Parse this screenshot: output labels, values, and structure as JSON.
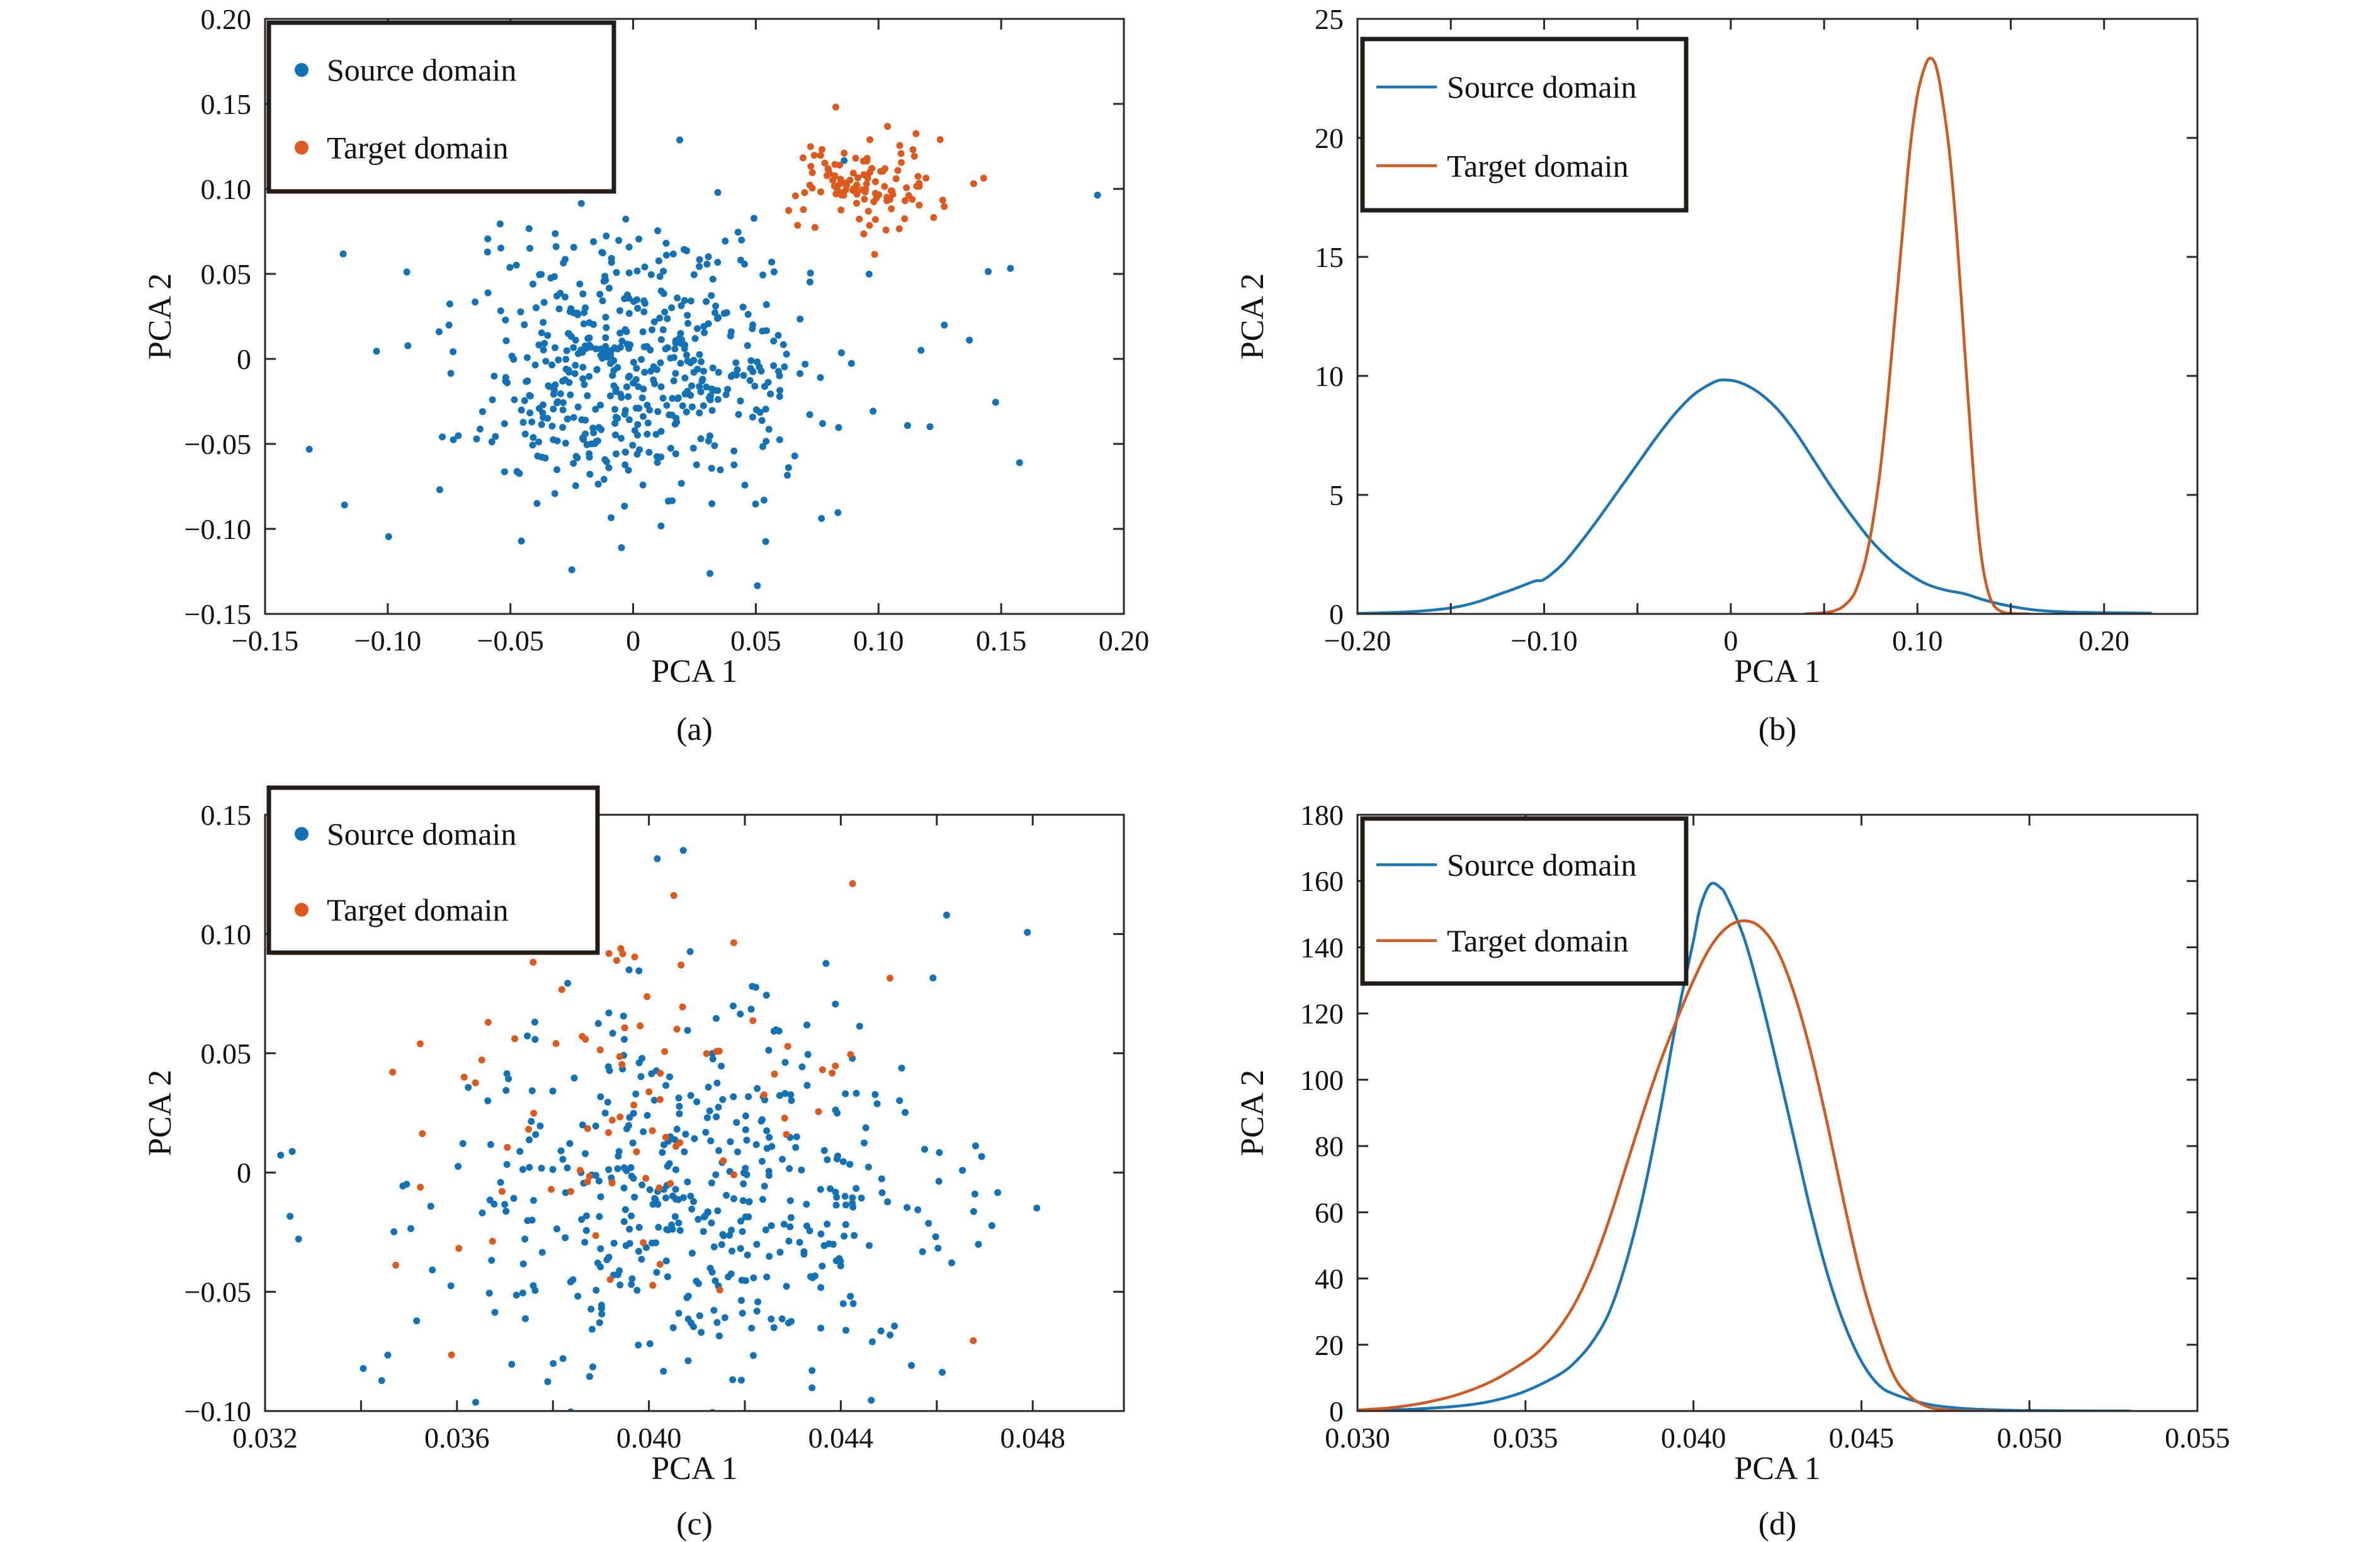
{
  "figure": {
    "colors": {
      "source_marker": "#1272b5",
      "target_marker": "#dc5a1e",
      "source_line": "#1d76b4",
      "target_line": "#cd5b22",
      "axis": "#2b2724",
      "legend_border": "#231d19",
      "text": "#111111",
      "background": "#ffffff"
    }
  },
  "chart_data": [
    {
      "id": "a",
      "type": "scatter",
      "caption": "(a)",
      "xlabel": "PCA 1",
      "ylabel": "PCA 2",
      "xlim": [
        -0.15,
        0.2
      ],
      "ylim": [
        -0.15,
        0.2
      ],
      "grid": false,
      "legend_position": "top-left",
      "xticks": [
        {
          "v": -0.15,
          "t": "−0.15"
        },
        {
          "v": -0.1,
          "t": "−0.10"
        },
        {
          "v": -0.05,
          "t": "−0.05"
        },
        {
          "v": 0,
          "t": "0"
        },
        {
          "v": 0.05,
          "t": "0.05"
        },
        {
          "v": 0.1,
          "t": "0.10"
        },
        {
          "v": 0.15,
          "t": "0.15"
        },
        {
          "v": 0.2,
          "t": "0.20"
        }
      ],
      "yticks": [
        {
          "v": -0.15,
          "t": "−0.15"
        },
        {
          "v": -0.1,
          "t": "−0.10"
        },
        {
          "v": -0.05,
          "t": "−0.05"
        },
        {
          "v": 0,
          "t": "0"
        },
        {
          "v": 0.05,
          "t": "0.05"
        },
        {
          "v": 0.1,
          "t": "0.10"
        },
        {
          "v": 0.15,
          "t": "0.15"
        },
        {
          "v": 0.2,
          "t": "0.20"
        }
      ],
      "series": [
        {
          "name": "Source domain",
          "marker": "dot",
          "color_key": "source_marker",
          "seed": 42,
          "clusters": [
            {
              "center": [
                -0.003,
                -0.006
              ],
              "std": [
                0.033,
                0.036
              ],
              "n": 430
            },
            {
              "center": [
                0.005,
                0.0
              ],
              "std": [
                0.068,
                0.058
              ],
              "n": 120
            }
          ]
        },
        {
          "name": "Target domain",
          "marker": "dot",
          "color_key": "target_marker",
          "seed": 7,
          "clusters": [
            {
              "center": [
                0.096,
                0.104
              ],
              "std": [
                0.0155,
                0.0135
              ],
              "n": 115
            }
          ]
        }
      ]
    },
    {
      "id": "b",
      "type": "line",
      "caption": "(b)",
      "xlabel": "PCA 1",
      "ylabel": "PCA 2",
      "xlim": [
        -0.2,
        0.25
      ],
      "ylim": [
        0,
        25
      ],
      "grid": false,
      "legend_position": "top-left",
      "xticks": [
        {
          "v": -0.2,
          "t": "−0.20"
        },
        {
          "v": -0.15,
          "t": ""
        },
        {
          "v": -0.1,
          "t": "−0.10"
        },
        {
          "v": -0.05,
          "t": ""
        },
        {
          "v": 0,
          "t": "0"
        },
        {
          "v": 0.05,
          "t": ""
        },
        {
          "v": 0.1,
          "t": "0.10"
        },
        {
          "v": 0.15,
          "t": ""
        },
        {
          "v": 0.2,
          "t": "0.20"
        },
        {
          "v": 0.25,
          "t": ""
        }
      ],
      "yticks": [
        {
          "v": 0,
          "t": "0"
        },
        {
          "v": 5,
          "t": "5"
        },
        {
          "v": 10,
          "t": "10"
        },
        {
          "v": 15,
          "t": "15"
        },
        {
          "v": 20,
          "t": "20"
        },
        {
          "v": 25,
          "t": "25"
        }
      ],
      "series": [
        {
          "name": "Source domain",
          "marker": "line",
          "color_key": "source_line",
          "points": [
            [
              -0.2,
              0.02
            ],
            [
              -0.185,
              0.05
            ],
            [
              -0.17,
              0.1
            ],
            [
              -0.155,
              0.2
            ],
            [
              -0.145,
              0.32
            ],
            [
              -0.135,
              0.52
            ],
            [
              -0.125,
              0.8
            ],
            [
              -0.115,
              1.08
            ],
            [
              -0.105,
              1.38
            ],
            [
              -0.1,
              1.45
            ],
            [
              -0.09,
              2.1
            ],
            [
              -0.08,
              3.05
            ],
            [
              -0.07,
              4.1
            ],
            [
              -0.06,
              5.2
            ],
            [
              -0.05,
              6.3
            ],
            [
              -0.04,
              7.4
            ],
            [
              -0.03,
              8.4
            ],
            [
              -0.02,
              9.2
            ],
            [
              -0.01,
              9.7
            ],
            [
              -0.004,
              9.83
            ],
            [
              0.005,
              9.72
            ],
            [
              0.015,
              9.3
            ],
            [
              0.025,
              8.6
            ],
            [
              0.035,
              7.6
            ],
            [
              0.045,
              6.4
            ],
            [
              0.055,
              5.2
            ],
            [
              0.065,
              4.1
            ],
            [
              0.075,
              3.1
            ],
            [
              0.085,
              2.3
            ],
            [
              0.095,
              1.7
            ],
            [
              0.105,
              1.25
            ],
            [
              0.115,
              1.0
            ],
            [
              0.125,
              0.85
            ],
            [
              0.135,
              0.6
            ],
            [
              0.145,
              0.4
            ],
            [
              0.155,
              0.25
            ],
            [
              0.165,
              0.15
            ],
            [
              0.18,
              0.08
            ],
            [
              0.2,
              0.05
            ],
            [
              0.215,
              0.04
            ],
            [
              0.225,
              0.03
            ]
          ]
        },
        {
          "name": "Target domain",
          "marker": "line",
          "color_key": "target_line",
          "points": [
            [
              0.04,
              0.0
            ],
            [
              0.05,
              0.05
            ],
            [
              0.055,
              0.12
            ],
            [
              0.06,
              0.3
            ],
            [
              0.065,
              0.7
            ],
            [
              0.068,
              1.2
            ],
            [
              0.072,
              2.2
            ],
            [
              0.076,
              3.8
            ],
            [
              0.08,
              6.0
            ],
            [
              0.084,
              9.0
            ],
            [
              0.088,
              12.5
            ],
            [
              0.092,
              16.0
            ],
            [
              0.096,
              19.5
            ],
            [
              0.1,
              21.8
            ],
            [
              0.104,
              23.0
            ],
            [
              0.107,
              23.35
            ],
            [
              0.11,
              23.0
            ],
            [
              0.113,
              21.8
            ],
            [
              0.117,
              19.5
            ],
            [
              0.121,
              16.0
            ],
            [
              0.125,
              11.5
            ],
            [
              0.129,
              7.0
            ],
            [
              0.132,
              4.0
            ],
            [
              0.135,
              2.0
            ],
            [
              0.138,
              0.9
            ],
            [
              0.141,
              0.35
            ],
            [
              0.145,
              0.1
            ],
            [
              0.15,
              0.02
            ],
            [
              0.16,
              0.0
            ]
          ]
        }
      ]
    },
    {
      "id": "c",
      "type": "scatter",
      "caption": "(c)",
      "xlabel": "PCA 1",
      "ylabel": "PCA 2",
      "xlim": [
        0.032,
        0.0499
      ],
      "ylim": [
        -0.1,
        0.15
      ],
      "grid": false,
      "legend_position": "top-left",
      "xticks": [
        {
          "v": 0.032,
          "t": "0.032"
        },
        {
          "v": 0.034,
          "t": ""
        },
        {
          "v": 0.036,
          "t": "0.036"
        },
        {
          "v": 0.038,
          "t": ""
        },
        {
          "v": 0.04,
          "t": "0.040"
        },
        {
          "v": 0.042,
          "t": ""
        },
        {
          "v": 0.044,
          "t": "0.044"
        },
        {
          "v": 0.046,
          "t": ""
        },
        {
          "v": 0.048,
          "t": "0.048"
        }
      ],
      "yticks": [
        {
          "v": -0.1,
          "t": "−0.10"
        },
        {
          "v": -0.05,
          "t": "−0.05"
        },
        {
          "v": 0,
          "t": "0"
        },
        {
          "v": 0.05,
          "t": "0.05"
        },
        {
          "v": 0.1,
          "t": "0.10"
        },
        {
          "v": 0.15,
          "t": "0.15"
        }
      ],
      "series": [
        {
          "name": "Source domain",
          "marker": "dot",
          "color_key": "source_marker",
          "seed": 1234,
          "clusters": [
            {
              "center": [
                0.0412,
                -0.014
              ],
              "std": [
                0.0026,
                0.036
              ],
              "n": 400
            },
            {
              "center": [
                0.0406,
                0.012
              ],
              "std": [
                0.0037,
                0.055
              ],
              "n": 80
            }
          ]
        },
        {
          "name": "Target domain",
          "marker": "dot",
          "color_key": "target_marker",
          "seed": 99,
          "clusters": [
            {
              "center": [
                0.04,
                0.022
              ],
              "std": [
                0.0028,
                0.042
              ],
              "n": 88
            }
          ]
        }
      ]
    },
    {
      "id": "d",
      "type": "line",
      "caption": "(d)",
      "xlabel": "PCA 1",
      "ylabel": "PCA 2",
      "xlim": [
        0.03,
        0.055
      ],
      "ylim": [
        0,
        180
      ],
      "grid": false,
      "legend_position": "top-left",
      "xticks": [
        {
          "v": 0.03,
          "t": "0.030"
        },
        {
          "v": 0.035,
          "t": "0.035"
        },
        {
          "v": 0.04,
          "t": "0.040"
        },
        {
          "v": 0.045,
          "t": "0.045"
        },
        {
          "v": 0.05,
          "t": "0.050"
        },
        {
          "v": 0.055,
          "t": "0.055"
        }
      ],
      "yticks": [
        {
          "v": 0,
          "t": "0"
        },
        {
          "v": 20,
          "t": "20"
        },
        {
          "v": 40,
          "t": "40"
        },
        {
          "v": 60,
          "t": "60"
        },
        {
          "v": 80,
          "t": "80"
        },
        {
          "v": 100,
          "t": "100"
        },
        {
          "v": 120,
          "t": "120"
        },
        {
          "v": 140,
          "t": "140"
        },
        {
          "v": 160,
          "t": "160"
        },
        {
          "v": 180,
          "t": "180"
        }
      ],
      "series": [
        {
          "name": "Source domain",
          "marker": "line",
          "color_key": "source_line",
          "points": [
            [
              0.03,
              0.2
            ],
            [
              0.0315,
              0.5
            ],
            [
              0.033,
              1.5
            ],
            [
              0.034,
              3
            ],
            [
              0.035,
              6
            ],
            [
              0.036,
              11
            ],
            [
              0.0365,
              15
            ],
            [
              0.037,
              21
            ],
            [
              0.0375,
              30
            ],
            [
              0.038,
              45
            ],
            [
              0.0385,
              65
            ],
            [
              0.039,
              90
            ],
            [
              0.0395,
              118
            ],
            [
              0.04,
              142
            ],
            [
              0.0402,
              152
            ],
            [
              0.0405,
              159
            ],
            [
              0.0408,
              158
            ],
            [
              0.041,
              155
            ],
            [
              0.0415,
              143
            ],
            [
              0.042,
              125
            ],
            [
              0.0425,
              104
            ],
            [
              0.043,
              82
            ],
            [
              0.0435,
              60
            ],
            [
              0.044,
              41
            ],
            [
              0.0445,
              26
            ],
            [
              0.045,
              15
            ],
            [
              0.0455,
              8
            ],
            [
              0.046,
              5
            ],
            [
              0.047,
              2
            ],
            [
              0.048,
              0.8
            ],
            [
              0.049,
              0.35
            ],
            [
              0.05,
              0.15
            ],
            [
              0.0515,
              0.05
            ],
            [
              0.053,
              0
            ]
          ]
        },
        {
          "name": "Target domain",
          "marker": "line",
          "color_key": "target_line",
          "points": [
            [
              0.03,
              0.3
            ],
            [
              0.031,
              1
            ],
            [
              0.032,
              2.5
            ],
            [
              0.033,
              5
            ],
            [
              0.034,
              9
            ],
            [
              0.035,
              15
            ],
            [
              0.0355,
              19
            ],
            [
              0.036,
              25
            ],
            [
              0.0365,
              33
            ],
            [
              0.037,
              44
            ],
            [
              0.0375,
              58
            ],
            [
              0.038,
              74
            ],
            [
              0.0385,
              90
            ],
            [
              0.039,
              105
            ],
            [
              0.0395,
              118
            ],
            [
              0.04,
              130
            ],
            [
              0.0405,
              140
            ],
            [
              0.041,
              146
            ],
            [
              0.0415,
              148
            ],
            [
              0.042,
              146
            ],
            [
              0.0425,
              139
            ],
            [
              0.043,
              126
            ],
            [
              0.0435,
              108
            ],
            [
              0.044,
              86
            ],
            [
              0.0445,
              62
            ],
            [
              0.045,
              40
            ],
            [
              0.0455,
              23
            ],
            [
              0.046,
              10
            ],
            [
              0.0465,
              4
            ],
            [
              0.047,
              1.2
            ],
            [
              0.0475,
              0.4
            ],
            [
              0.048,
              0.1
            ],
            [
              0.049,
              0
            ]
          ]
        }
      ]
    }
  ]
}
